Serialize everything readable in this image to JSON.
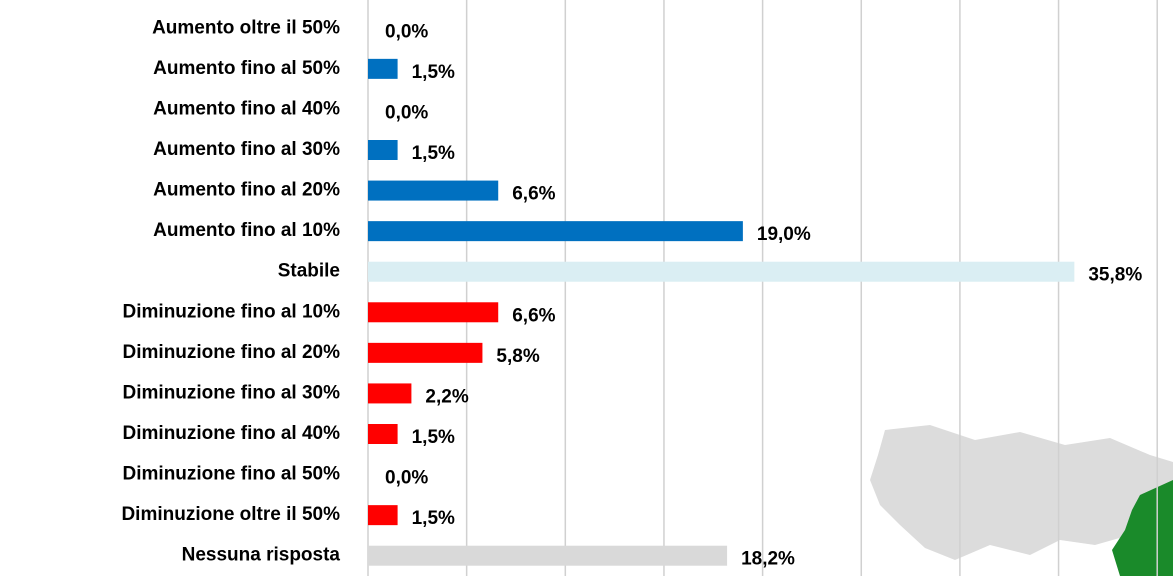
{
  "chart_data": {
    "type": "bar",
    "orientation": "horizontal",
    "categories": [
      "Aumento oltre il 50%",
      "Aumento fino al 50%",
      "Aumento fino al 40%",
      "Aumento fino al 30%",
      "Aumento fino al 20%",
      "Aumento fino al 10%",
      "Stabile",
      "Diminuzione fino al 10%",
      "Diminuzione fino al 20%",
      "Diminuzione fino al 30%",
      "Diminuzione fino al 40%",
      "Diminuzione fino al 50%",
      "Diminuzione oltre il 50%",
      "Nessuna risposta"
    ],
    "values": [
      0.0,
      1.5,
      0.0,
      1.5,
      6.6,
      19.0,
      35.8,
      6.6,
      5.8,
      2.2,
      1.5,
      0.0,
      1.5,
      18.2
    ],
    "value_labels": [
      "0,0%",
      "1,5%",
      "0,0%",
      "1,5%",
      "6,6%",
      "19,0%",
      "35,8%",
      "6,6%",
      "5,8%",
      "2,2%",
      "1,5%",
      "0,0%",
      "1,5%",
      "18,2%"
    ],
    "colors": [
      "#0070c0",
      "#0070c0",
      "#0070c0",
      "#0070c0",
      "#0070c0",
      "#0070c0",
      "#daeef3",
      "#ff0000",
      "#ff0000",
      "#ff0000",
      "#ff0000",
      "#ff0000",
      "#ff0000",
      "#d9d9d9"
    ],
    "xlim": [
      0,
      40.8
    ],
    "xticks": [
      0,
      5,
      10,
      15,
      20,
      25,
      30,
      35,
      40
    ],
    "grid": true
  }
}
